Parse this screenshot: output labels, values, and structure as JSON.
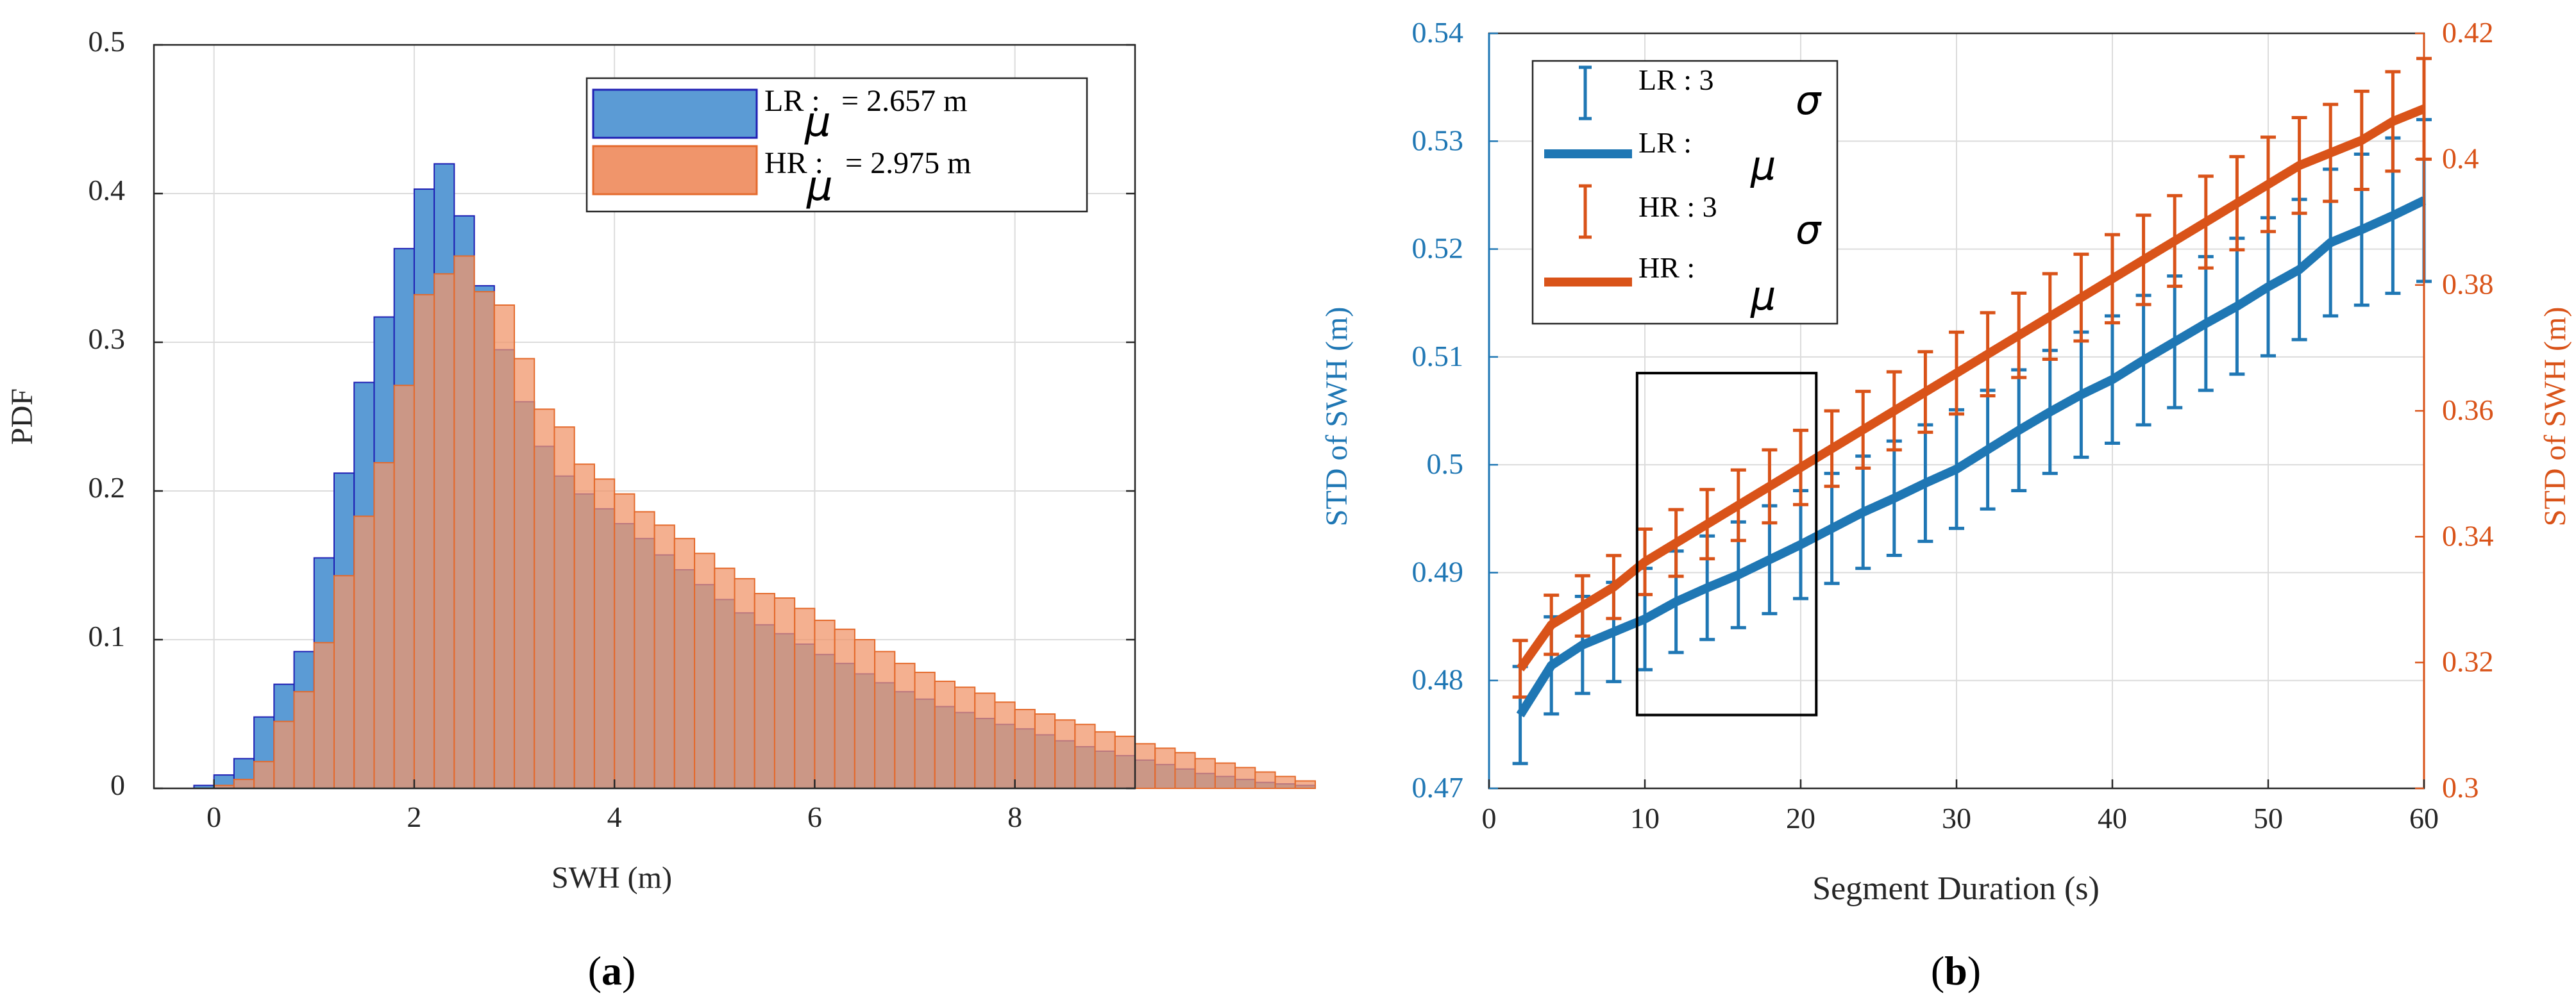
{
  "chart_data": [
    {
      "type": "bar",
      "panel_label": "(a)",
      "panel_letter": "a",
      "xlabel": "SWH (m)",
      "ylabel": "PDF",
      "xlim": [
        -0.6,
        9.2
      ],
      "ylim": [
        0,
        0.5
      ],
      "xticks": [
        0,
        2,
        4,
        6,
        8
      ],
      "yticks": [
        0,
        0.1,
        0.2,
        0.3,
        0.4,
        0.5
      ],
      "ytick_labels": [
        "0",
        "0.1",
        "0.2",
        "0.3",
        "0.4",
        "0.5"
      ],
      "grid": true,
      "bin_width": 0.2,
      "bin_start": -0.2,
      "legend": {
        "location": "top-right",
        "entries": [
          {
            "label": "LR :",
            "mu_symbol": "μ",
            "mu_value": "= 2.657 m"
          },
          {
            "label": "HR :",
            "mu_symbol": "μ",
            "mu_value": "= 2.975 m"
          }
        ]
      },
      "series": [
        {
          "name": "LR",
          "color": "#5b9bd5",
          "edge": "#1f1fb4",
          "values": [
            0.002,
            0.009,
            0.02,
            0.048,
            0.07,
            0.092,
            0.155,
            0.212,
            0.273,
            0.317,
            0.363,
            0.403,
            0.42,
            0.385,
            0.338,
            0.295,
            0.26,
            0.23,
            0.21,
            0.198,
            0.188,
            0.178,
            0.168,
            0.157,
            0.147,
            0.137,
            0.127,
            0.118,
            0.11,
            0.104,
            0.097,
            0.09,
            0.084,
            0.077,
            0.071,
            0.065,
            0.06,
            0.055,
            0.051,
            0.047,
            0.043,
            0.04,
            0.036,
            0.032,
            0.028,
            0.025,
            0.022,
            0.019,
            0.016,
            0.013,
            0.01,
            0.008,
            0.006,
            0.004,
            0.003,
            0.002
          ]
        },
        {
          "name": "HR",
          "color": "#f0956b",
          "edge": "#e46a2c",
          "values": [
            0,
            0.002,
            0.006,
            0.018,
            0.045,
            0.065,
            0.098,
            0.143,
            0.183,
            0.219,
            0.271,
            0.332,
            0.346,
            0.358,
            0.334,
            0.325,
            0.289,
            0.255,
            0.243,
            0.218,
            0.208,
            0.198,
            0.186,
            0.177,
            0.168,
            0.158,
            0.148,
            0.141,
            0.131,
            0.128,
            0.121,
            0.113,
            0.107,
            0.1,
            0.092,
            0.084,
            0.078,
            0.072,
            0.068,
            0.064,
            0.058,
            0.053,
            0.05,
            0.046,
            0.043,
            0.038,
            0.035,
            0.03,
            0.027,
            0.024,
            0.02,
            0.017,
            0.014,
            0.011,
            0.008,
            0.005
          ]
        }
      ]
    },
    {
      "type": "line",
      "panel_label": "(b)",
      "panel_letter": "b",
      "xlabel": "Segment Duration (s)",
      "ylabel_left": "STD of SWH (m)",
      "ylabel_right": "STD of SWH (m)",
      "xlim": [
        0,
        60
      ],
      "ylim_left": [
        0.47,
        0.54
      ],
      "ylim_right": [
        0.3,
        0.42
      ],
      "xticks": [
        0,
        10,
        20,
        30,
        40,
        50,
        60
      ],
      "yticks_left": [
        0.47,
        0.48,
        0.49,
        0.5,
        0.51,
        0.52,
        0.53,
        0.54
      ],
      "ytick_labels_left": [
        "0.47",
        "0.48",
        "0.49",
        "0.5",
        "0.51",
        "0.52",
        "0.53",
        "0.54"
      ],
      "yticks_right": [
        0.3,
        0.32,
        0.34,
        0.36,
        0.38,
        0.4,
        0.42
      ],
      "ytick_labels_right": [
        "0.3",
        "0.32",
        "0.34",
        "0.36",
        "0.38",
        "0.4",
        "0.42"
      ],
      "grid": true,
      "x": [
        2,
        4,
        6,
        8,
        10,
        12,
        14,
        16,
        18,
        20,
        22,
        24,
        26,
        28,
        30,
        32,
        34,
        36,
        38,
        40,
        42,
        44,
        46,
        48,
        50,
        52,
        54,
        56,
        58,
        60
      ],
      "series": [
        {
          "name": "LR",
          "axis": "left",
          "color": "#1f77b4",
          "mean": [
            0.4768,
            0.4814,
            0.4833,
            0.4845,
            0.4857,
            0.4873,
            0.4886,
            0.4898,
            0.4912,
            0.4926,
            0.4941,
            0.4956,
            0.4969,
            0.4983,
            0.4996,
            0.5014,
            0.5032,
            0.5049,
            0.5065,
            0.5079,
            0.5097,
            0.5114,
            0.5131,
            0.5147,
            0.5165,
            0.5181,
            0.5206,
            0.5218,
            0.5231,
            0.5245
          ],
          "err": [
            0.0045,
            0.0045,
            0.0045,
            0.0046,
            0.0047,
            0.0047,
            0.0048,
            0.0049,
            0.005,
            0.005,
            0.0051,
            0.0052,
            0.0053,
            0.0054,
            0.0055,
            0.0055,
            0.0056,
            0.0057,
            0.0058,
            0.0059,
            0.006,
            0.0061,
            0.0062,
            0.0063,
            0.0064,
            0.0065,
            0.0068,
            0.007,
            0.0072,
            0.0075
          ]
        },
        {
          "name": "HR",
          "axis": "right",
          "color": "#d95319",
          "mean": [
            0.319,
            0.326,
            0.329,
            0.332,
            0.336,
            0.339,
            0.342,
            0.345,
            0.348,
            0.351,
            0.354,
            0.357,
            0.36,
            0.363,
            0.366,
            0.369,
            0.372,
            0.375,
            0.378,
            0.381,
            0.384,
            0.387,
            0.39,
            0.393,
            0.396,
            0.399,
            0.401,
            0.403,
            0.406,
            0.408
          ],
          "err": [
            0.0045,
            0.0047,
            0.0048,
            0.005,
            0.0052,
            0.0053,
            0.0055,
            0.0056,
            0.0058,
            0.0059,
            0.006,
            0.0061,
            0.0062,
            0.0064,
            0.0065,
            0.0066,
            0.0067,
            0.0068,
            0.0069,
            0.007,
            0.0071,
            0.0072,
            0.0073,
            0.0074,
            0.0075,
            0.0076,
            0.0077,
            0.0078,
            0.0079,
            0.008
          ]
        }
      ],
      "legend": {
        "location": "top-left",
        "entries": [
          {
            "label": "LR : 3",
            "symbol": "σ",
            "kind": "errorbar",
            "series": "LR"
          },
          {
            "label": "LR :",
            "symbol": "μ",
            "kind": "line",
            "series": "LR"
          },
          {
            "label": "HR : 3",
            "symbol": "σ",
            "kind": "errorbar",
            "series": "HR"
          },
          {
            "label": "HR :",
            "symbol": "μ",
            "kind": "line",
            "series": "HR"
          }
        ]
      },
      "annotation": {
        "type": "rectangle",
        "x_range": [
          9.5,
          21
        ],
        "y_range_left": [
          0.4768,
          0.5085
        ]
      }
    }
  ]
}
